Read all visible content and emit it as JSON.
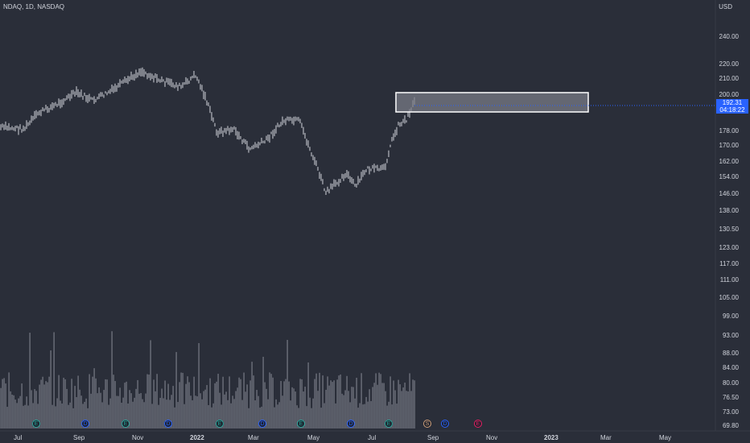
{
  "header": {
    "symbol_title": "NDAQ, 1D, NASDAQ",
    "currency": "USD"
  },
  "price_box": {
    "price": "192.31",
    "countdown": "04:18:22"
  },
  "y_axis": [
    "240.00",
    "220.00",
    "210.00",
    "200.00",
    "178.00",
    "170.00",
    "162.00",
    "154.00",
    "146.00",
    "138.00",
    "130.50",
    "123.00",
    "117.00",
    "111.00",
    "105.00",
    "99.00",
    "93.00",
    "88.00",
    "84.00",
    "80.00",
    "76.50",
    "73.00",
    "69.80"
  ],
  "x_axis": [
    {
      "label": "Jul",
      "bold": false
    },
    {
      "label": "Sep",
      "bold": false
    },
    {
      "label": "Nov",
      "bold": false
    },
    {
      "label": "2022",
      "bold": true
    },
    {
      "label": "Mar",
      "bold": false
    },
    {
      "label": "May",
      "bold": false
    },
    {
      "label": "Jul",
      "bold": false
    },
    {
      "label": "Sep",
      "bold": false
    },
    {
      "label": "Nov",
      "bold": false
    },
    {
      "label": "2023",
      "bold": true
    },
    {
      "label": "Mar",
      "bold": false
    },
    {
      "label": "May",
      "bold": false
    }
  ],
  "events": [
    {
      "kind": "E",
      "label": "E"
    },
    {
      "kind": "D",
      "label": "D"
    },
    {
      "kind": "E",
      "label": "E"
    },
    {
      "kind": "D",
      "label": "D"
    },
    {
      "kind": "E",
      "label": "E"
    },
    {
      "kind": "D",
      "label": "D"
    },
    {
      "kind": "E",
      "label": "E"
    },
    {
      "kind": "D",
      "label": "D"
    },
    {
      "kind": "E",
      "label": "E"
    },
    {
      "kind": "S",
      "label": "S"
    },
    {
      "kind": "D",
      "label": "D"
    },
    {
      "kind": "Ep",
      "label": "E"
    }
  ],
  "colors": {
    "background": "#2a2e39",
    "price_bars": "#d1d4dc",
    "volume": "#787b86",
    "price_label": "#2962ff",
    "zone_fill": "#787b86",
    "zone_border": "#ffffff"
  }
}
